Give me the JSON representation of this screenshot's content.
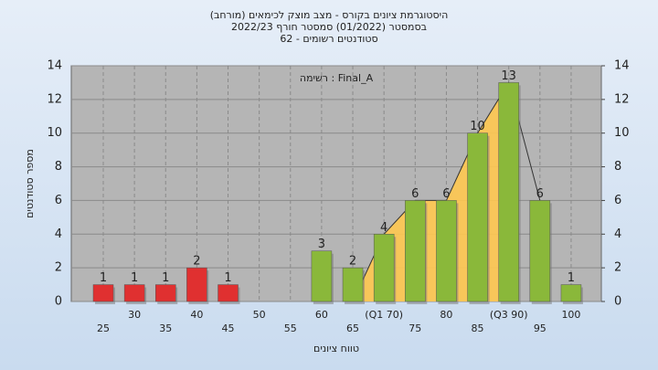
{
  "chart_data": {
    "type": "bar",
    "title": [
      "(היסטוגרמת ציונים בקורס - מצב מוצק לכימאים (מורחב",
      "בסמסטר  (01/2022)  סמסטר חורף 2022/23",
      "סטודנטים רשומים - 62"
    ],
    "annotation": "רשימה : Final_A",
    "x_label": "טווח ציונים",
    "y_label": "מספר סטודנטים",
    "categories": [
      "25",
      "30",
      "35",
      "40",
      "45",
      "50",
      "55",
      "60",
      "65",
      "(Q1 70)",
      "75",
      "80",
      "85",
      "(Q3 90)",
      "95",
      "100"
    ],
    "values": [
      1,
      1,
      1,
      2,
      1,
      0,
      0,
      3,
      2,
      4,
      6,
      6,
      10,
      13,
      6,
      1
    ],
    "colors": [
      "#e03030",
      "#e03030",
      "#e03030",
      "#e03030",
      "#e03030",
      "#e03030",
      "#e03030",
      "#8ab83a",
      "#8ab83a",
      "#8ab83a",
      "#8ab83a",
      "#8ab83a",
      "#8ab83a",
      "#8ab83a",
      "#8ab83a",
      "#8ab83a"
    ],
    "area_values": [
      null,
      null,
      null,
      null,
      null,
      null,
      null,
      null,
      0,
      4,
      6,
      6,
      10,
      13,
      6,
      null
    ],
    "area_color": "#ffc850",
    "ylim": [
      0,
      14
    ],
    "yticks": [
      0,
      2,
      4,
      6,
      8,
      10,
      12,
      14
    ],
    "y2lim": [
      0,
      14
    ],
    "y2ticks": [
      0,
      2,
      4,
      6,
      8,
      10,
      12,
      14
    ],
    "grid": true
  }
}
